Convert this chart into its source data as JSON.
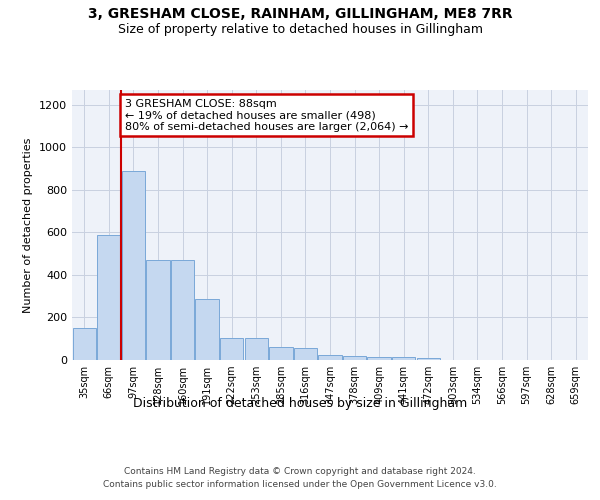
{
  "title1": "3, GRESHAM CLOSE, RAINHAM, GILLINGHAM, ME8 7RR",
  "title2": "Size of property relative to detached houses in Gillingham",
  "xlabel": "Distribution of detached houses by size in Gillingham",
  "ylabel": "Number of detached properties",
  "footer1": "Contains HM Land Registry data © Crown copyright and database right 2024.",
  "footer2": "Contains public sector information licensed under the Open Government Licence v3.0.",
  "annotation_line1": "3 GRESHAM CLOSE: 88sqm",
  "annotation_line2": "← 19% of detached houses are smaller (498)",
  "annotation_line3": "80% of semi-detached houses are larger (2,064) →",
  "bar_color": "#c5d8f0",
  "bar_edge_color": "#7aa8d8",
  "vline_color": "#cc0000",
  "vline_x_index": 1.5,
  "categories": [
    "35sqm",
    "66sqm",
    "97sqm",
    "128sqm",
    "160sqm",
    "191sqm",
    "222sqm",
    "253sqm",
    "285sqm",
    "316sqm",
    "347sqm",
    "378sqm",
    "409sqm",
    "441sqm",
    "472sqm",
    "503sqm",
    "534sqm",
    "566sqm",
    "597sqm",
    "628sqm",
    "659sqm"
  ],
  "values": [
    150,
    590,
    890,
    470,
    470,
    285,
    105,
    105,
    60,
    55,
    25,
    18,
    12,
    12,
    8,
    0,
    0,
    0,
    0,
    0,
    0
  ],
  "ylim": [
    0,
    1270
  ],
  "yticks": [
    0,
    200,
    400,
    600,
    800,
    1000,
    1200
  ],
  "background_color": "#ffffff",
  "plot_bg_color": "#eef2f9",
  "annotation_box_facecolor": "#ffffff",
  "annotation_box_edgecolor": "#cc0000",
  "grid_color": "#c8d0e0",
  "title1_fontsize": 10,
  "title2_fontsize": 9,
  "ylabel_fontsize": 8,
  "xtick_fontsize": 7,
  "ytick_fontsize": 8,
  "footer_fontsize": 6.5,
  "xlabel_fontsize": 9,
  "annotation_fontsize": 8
}
